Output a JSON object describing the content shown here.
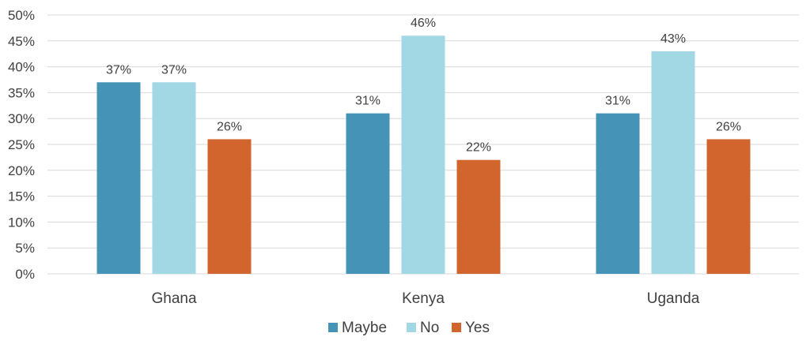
{
  "chart_data": {
    "type": "bar",
    "categories": [
      "Ghana",
      "Kenya",
      "Uganda"
    ],
    "series": [
      {
        "name": "Maybe",
        "values": [
          37,
          31,
          31
        ],
        "labels": [
          "37%",
          "31%",
          "31%"
        ],
        "color": "#4594b7"
      },
      {
        "name": "No",
        "values": [
          37,
          46,
          43
        ],
        "labels": [
          "37%",
          "46%",
          "43%"
        ],
        "color": "#a2d8e4"
      },
      {
        "name": "Yes",
        "values": [
          26,
          22,
          26
        ],
        "labels": [
          "26%",
          "22%",
          "26%"
        ],
        "color": "#d2642e"
      }
    ],
    "ylim": [
      0,
      50
    ],
    "yticks": [
      0,
      5,
      10,
      15,
      20,
      25,
      30,
      35,
      40,
      45,
      50
    ],
    "ytick_labels": [
      "0%",
      "5%",
      "10%",
      "15%",
      "20%",
      "25%",
      "30%",
      "35%",
      "40%",
      "45%",
      "50%"
    ],
    "grid": true,
    "gridline_color": "#d9d9d9",
    "legend_position": "bottom",
    "title": "",
    "xlabel": "",
    "ylabel": ""
  }
}
